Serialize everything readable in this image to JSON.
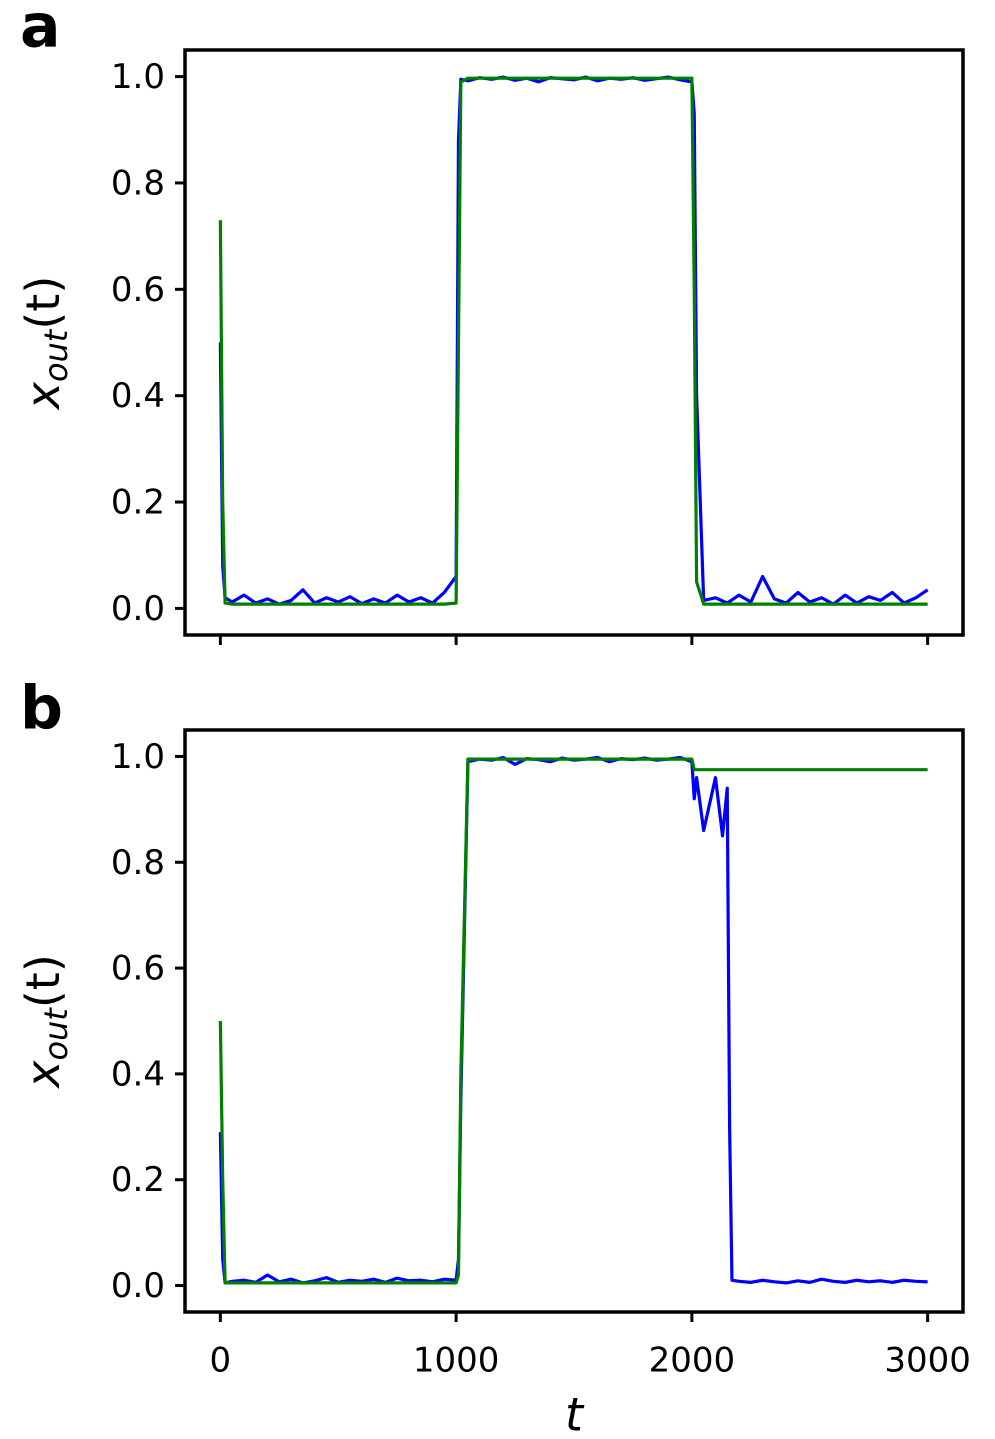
{
  "chart_data": [
    {
      "type": "line",
      "panel_label": "a",
      "ylabel": [
        "x",
        "out",
        "(t)"
      ],
      "xlim": [
        -150,
        3150
      ],
      "ylim": [
        -0.05,
        1.05
      ],
      "xticks": [
        0,
        1000,
        2000,
        3000
      ],
      "show_xtick_labels": false,
      "yticks": [
        {
          "value": 0,
          "label": "0.0"
        },
        0.2,
        0.4,
        0.6,
        0.8,
        {
          "value": 1,
          "label": "1.0"
        }
      ],
      "x": [
        0,
        10,
        20,
        50,
        100,
        150,
        200,
        250,
        300,
        350,
        400,
        450,
        500,
        550,
        600,
        650,
        700,
        750,
        800,
        850,
        900,
        950,
        1000,
        1010,
        1020,
        1050,
        1100,
        1150,
        1200,
        1250,
        1300,
        1350,
        1400,
        1450,
        1500,
        1550,
        1600,
        1650,
        1700,
        1750,
        1800,
        1850,
        1900,
        1950,
        2000,
        2010,
        2020,
        2050,
        2100,
        2150,
        2200,
        2250,
        2300,
        2350,
        2400,
        2450,
        2500,
        2550,
        2600,
        2650,
        2700,
        2750,
        2800,
        2850,
        2900,
        2950,
        3000
      ],
      "series": [
        {
          "color": "#0000ff",
          "values": [
            0.5,
            0.08,
            0.02,
            0.012,
            0.025,
            0.01,
            0.018,
            0.008,
            0.015,
            0.035,
            0.01,
            0.02,
            0.012,
            0.022,
            0.009,
            0.018,
            0.01,
            0.025,
            0.012,
            0.02,
            0.01,
            0.03,
            0.06,
            0.88,
            0.995,
            0.992,
            0.998,
            0.995,
            0.999,
            0.993,
            0.997,
            0.99,
            0.998,
            0.996,
            0.994,
            0.999,
            0.992,
            0.997,
            0.995,
            0.998,
            0.993,
            0.996,
            0.999,
            0.994,
            0.99,
            0.93,
            0.4,
            0.015,
            0.02,
            0.01,
            0.025,
            0.012,
            0.06,
            0.018,
            0.01,
            0.03,
            0.012,
            0.02,
            0.008,
            0.025,
            0.01,
            0.022,
            0.015,
            0.03,
            0.01,
            0.02,
            0.035
          ]
        },
        {
          "color": "#008000",
          "values": [
            0.73,
            0.2,
            0.01,
            0.008,
            0.008,
            0.008,
            0.008,
            0.008,
            0.008,
            0.008,
            0.008,
            0.008,
            0.008,
            0.008,
            0.008,
            0.008,
            0.008,
            0.008,
            0.008,
            0.008,
            0.008,
            0.008,
            0.01,
            0.5,
            0.99,
            0.997,
            0.997,
            0.997,
            0.997,
            0.997,
            0.997,
            0.997,
            0.997,
            0.997,
            0.997,
            0.997,
            0.997,
            0.997,
            0.997,
            0.997,
            0.997,
            0.997,
            0.997,
            0.997,
            0.997,
            0.6,
            0.05,
            0.008,
            0.008,
            0.008,
            0.008,
            0.008,
            0.008,
            0.008,
            0.008,
            0.008,
            0.008,
            0.008,
            0.008,
            0.008,
            0.008,
            0.008,
            0.008,
            0.008,
            0.008,
            0.008,
            0.008
          ]
        }
      ]
    },
    {
      "type": "line",
      "panel_label": "b",
      "ylabel": [
        "x",
        "out",
        "(t)"
      ],
      "xlabel": "t",
      "xlim": [
        -150,
        3150
      ],
      "ylim": [
        -0.05,
        1.05
      ],
      "xticks": [
        0,
        1000,
        2000,
        3000
      ],
      "show_xtick_labels": true,
      "yticks": [
        {
          "value": 0,
          "label": "0.0"
        },
        0.2,
        0.4,
        0.6,
        0.8,
        {
          "value": 1,
          "label": "1.0"
        }
      ],
      "x": [
        0,
        10,
        20,
        50,
        100,
        150,
        200,
        250,
        300,
        350,
        400,
        450,
        500,
        550,
        600,
        650,
        700,
        750,
        800,
        850,
        900,
        950,
        1000,
        1010,
        1020,
        1050,
        1100,
        1150,
        1200,
        1250,
        1300,
        1350,
        1400,
        1450,
        1500,
        1550,
        1600,
        1650,
        1700,
        1750,
        1800,
        1850,
        1900,
        1950,
        2000,
        2010,
        2020,
        2050,
        2100,
        2130,
        2150,
        2160,
        2170,
        2200,
        2250,
        2300,
        2350,
        2400,
        2450,
        2500,
        2550,
        2600,
        2650,
        2700,
        2750,
        2800,
        2850,
        2900,
        2950,
        3000
      ],
      "series": [
        {
          "color": "#0000ff",
          "values": [
            0.29,
            0.05,
            0.005,
            0.008,
            0.01,
            0.006,
            0.02,
            0.007,
            0.012,
            0.005,
            0.009,
            0.015,
            0.006,
            0.01,
            0.008,
            0.012,
            0.006,
            0.014,
            0.009,
            0.01,
            0.007,
            0.012,
            0.01,
            0.05,
            0.35,
            0.99,
            0.995,
            0.993,
            0.998,
            0.985,
            0.996,
            0.994,
            0.99,
            0.997,
            0.993,
            0.995,
            0.998,
            0.99,
            0.996,
            0.994,
            0.997,
            0.993,
            0.995,
            0.998,
            0.99,
            0.92,
            0.96,
            0.86,
            0.96,
            0.85,
            0.94,
            0.3,
            0.01,
            0.008,
            0.006,
            0.01,
            0.007,
            0.005,
            0.009,
            0.006,
            0.012,
            0.008,
            0.006,
            0.01,
            0.007,
            0.009,
            0.006,
            0.01,
            0.008,
            0.007
          ]
        },
        {
          "color": "#008000",
          "values": [
            0.5,
            0.2,
            0.005,
            0.005,
            0.005,
            0.005,
            0.005,
            0.005,
            0.005,
            0.005,
            0.005,
            0.005,
            0.005,
            0.005,
            0.005,
            0.005,
            0.005,
            0.005,
            0.005,
            0.005,
            0.005,
            0.005,
            0.005,
            0.02,
            0.4,
            0.995,
            0.995,
            0.995,
            0.995,
            0.995,
            0.995,
            0.995,
            0.995,
            0.995,
            0.995,
            0.995,
            0.995,
            0.995,
            0.995,
            0.995,
            0.995,
            0.995,
            0.995,
            0.995,
            0.995,
            0.975,
            0.975,
            0.975,
            0.975,
            0.975,
            0.975,
            0.975,
            0.975,
            0.975,
            0.975,
            0.975,
            0.975,
            0.975,
            0.975,
            0.975,
            0.975,
            0.975,
            0.975,
            0.975,
            0.975,
            0.975,
            0.975,
            0.975,
            0.975,
            0.975
          ]
        }
      ]
    }
  ]
}
